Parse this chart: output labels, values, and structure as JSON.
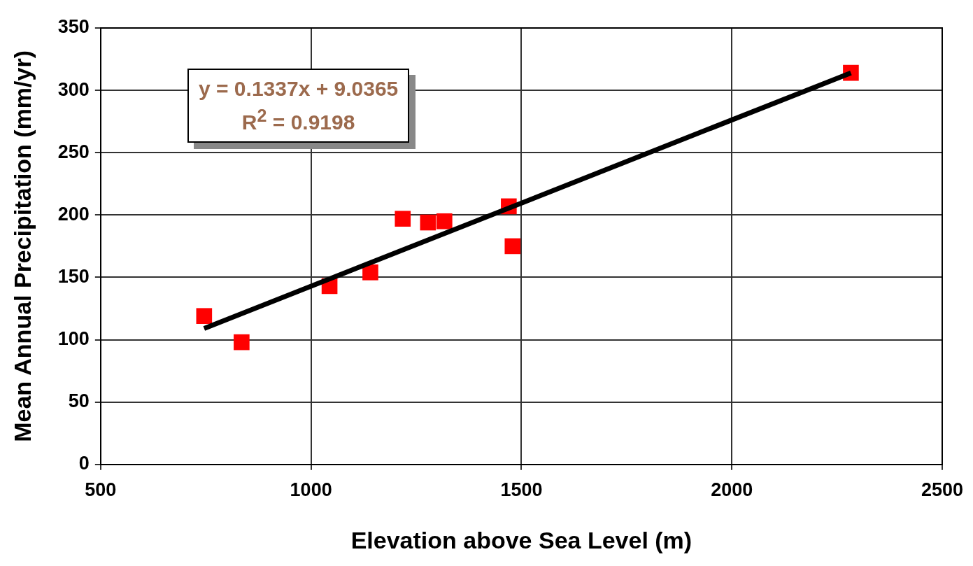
{
  "chart_data": {
    "type": "scatter",
    "xlabel": "Elevation above Sea Level (m)",
    "ylabel": "Mean Annual Precipitation (mm/yr)",
    "x": [
      746,
      835,
      1044,
      1141,
      1218,
      1278,
      1317,
      1470,
      1479,
      2283
    ],
    "series": [
      {
        "type": "scatter",
        "color": "#ff0000",
        "marker": "square",
        "values": [
          119,
          98,
          143,
          154,
          197,
          194,
          195,
          207,
          175,
          314
        ]
      },
      {
        "type": "line",
        "color": "#000000",
        "marker": "none",
        "x": [
          746,
          2283
        ],
        "values": [
          109,
          314
        ]
      }
    ],
    "annotations": [
      "y = 0.1337x + 9.0365",
      "R$^{2}$ = 0.9198"
    ],
    "xlim": [
      500,
      2500
    ],
    "xticks": [
      500,
      1000,
      1500,
      2000,
      2500
    ],
    "ylim": [
      0,
      350
    ],
    "yticks": [
      0,
      50,
      100,
      150,
      200,
      250,
      300,
      350
    ],
    "grid": true,
    "legend": false
  }
}
